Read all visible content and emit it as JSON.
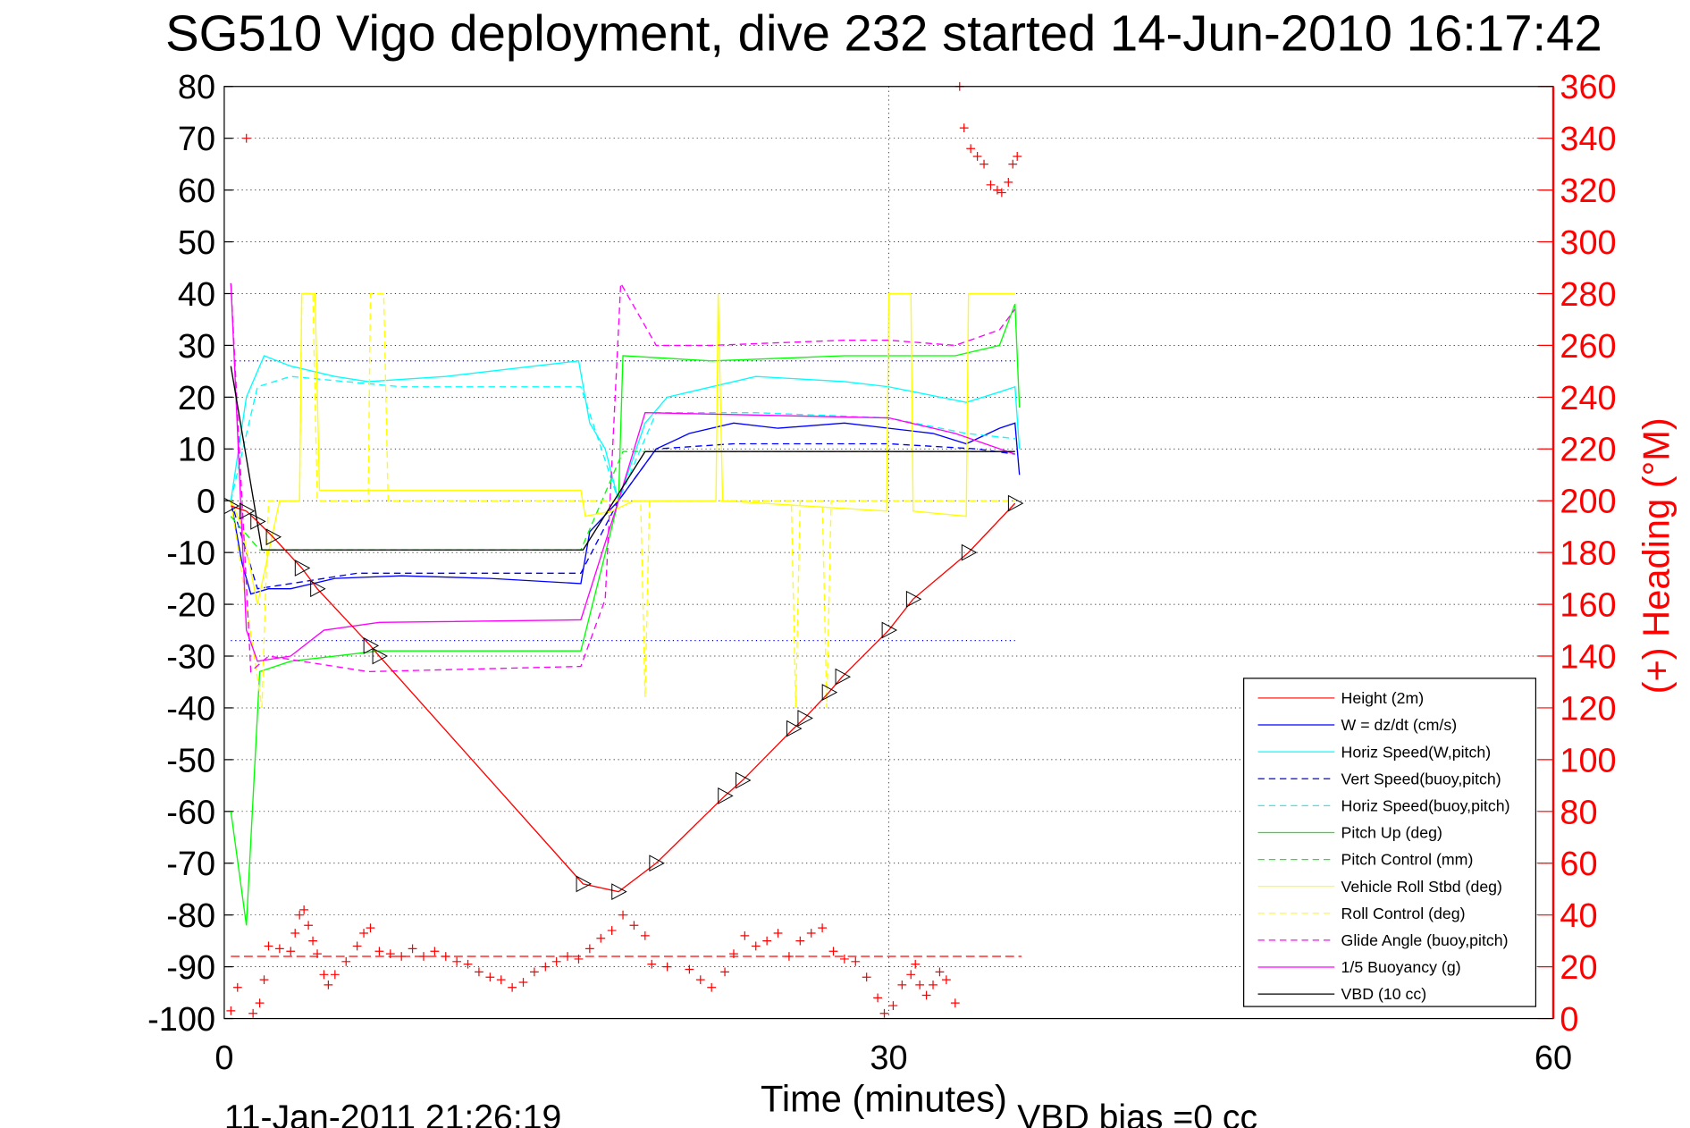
{
  "chart_data": {
    "type": "line",
    "title": "SG510 Vigo deployment, dive 232 started 14-Jun-2010 16:17:42",
    "xlabel": "Time (minutes)",
    "ylabel_right": "(+) Heading (°M)",
    "footer_date": "11-Jan-2011 21:26:19",
    "footer_note": "VBD bias =0 cc",
    "xlim": [
      0,
      60
    ],
    "ylim_left": [
      -100,
      80
    ],
    "ylim_right": [
      0,
      360
    ],
    "x_ticks": [
      "0",
      "30",
      "60"
    ],
    "y_ticks_left": [
      "80",
      "70",
      "60",
      "50",
      "40",
      "30",
      "20",
      "10",
      "0",
      "-10",
      "-20",
      "-30",
      "-40",
      "-50",
      "-60",
      "-70",
      "-80",
      "-90",
      "-100"
    ],
    "y_ticks_right": [
      "360",
      "340",
      "320",
      "300",
      "280",
      "260",
      "240",
      "220",
      "200",
      "180",
      "160",
      "140",
      "120",
      "100",
      "80",
      "60",
      "40",
      "20",
      "0"
    ],
    "grid": true,
    "legend_position": "bottom-right",
    "series": [
      {
        "name": "Height (2m)",
        "color": "#ff0000",
        "dash": false,
        "markers": "triangle",
        "x": [
          0.3,
          1,
          1.5,
          2.2,
          3.5,
          4.2,
          6.6,
          7,
          16.2,
          17.8,
          19.5,
          22.6,
          23.4,
          25.7,
          26.2,
          27.3,
          27.9,
          30,
          31.1,
          33.6,
          35.7
        ],
        "y": [
          -1,
          -2,
          -4,
          -7,
          -13,
          -17,
          -28,
          -30,
          -74,
          -75.5,
          -70,
          -57,
          -54,
          -44,
          -42,
          -37,
          -34,
          -25,
          -19,
          -10,
          -0.5
        ]
      },
      {
        "name": "W = dz/dt (cm/s)",
        "color": "#0000ff",
        "dash": false,
        "x": [
          0.3,
          0.8,
          1.2,
          2,
          3,
          5,
          8,
          12,
          16.1,
          16.5,
          17.8,
          19.5,
          21,
          23,
          25,
          28,
          30,
          32,
          33.5,
          35,
          35.7,
          35.9
        ],
        "y": [
          0,
          -12,
          -18,
          -17,
          -17,
          -15,
          -14.5,
          -15,
          -16,
          -6,
          0,
          10,
          13,
          15,
          14,
          15,
          14,
          13,
          11,
          14,
          15,
          5
        ]
      },
      {
        "name": "Horiz Speed(W,pitch)",
        "color": "#00ffff",
        "dash": false,
        "x": [
          0.3,
          1,
          1.8,
          3,
          5,
          6.5,
          10,
          14,
          16,
          16.5,
          17.2,
          17.8,
          19,
          20,
          24,
          28,
          30,
          33.5,
          35,
          35.7,
          35.9
        ],
        "y": [
          0,
          20,
          28,
          26,
          24,
          23,
          24,
          26,
          27,
          15,
          10,
          0,
          15,
          20,
          24,
          23,
          22,
          19,
          21,
          22,
          10
        ]
      },
      {
        "name": "Vert Speed(buoy,pitch)",
        "color": "#0000ff",
        "dash": true,
        "x": [
          0.3,
          1.5,
          3,
          6,
          16.1,
          17.8,
          19.5,
          23,
          30,
          34,
          35.7
        ],
        "y": [
          0,
          -17,
          -16,
          -14,
          -14,
          0,
          10,
          11,
          11,
          10,
          9
        ]
      },
      {
        "name": "Horiz Speed(buoy,pitch)",
        "color": "#00ffff",
        "dash": true,
        "x": [
          0.3,
          1.5,
          3,
          8,
          16.1,
          17.8,
          19.5,
          24,
          30,
          33.5,
          35.7
        ],
        "y": [
          0,
          22,
          24,
          22,
          22,
          0,
          17,
          17,
          16,
          13,
          12
        ]
      },
      {
        "name": "Pitch Up (deg)",
        "color": "#00ff00",
        "dash": false,
        "x": [
          0.3,
          1,
          1.6,
          3,
          7,
          16.1,
          17.8,
          18,
          22,
          28,
          33,
          35,
          35.7,
          35.9
        ],
        "y": [
          -60,
          -82,
          -33,
          -31,
          -29,
          -29,
          0,
          28,
          27,
          28,
          28,
          30,
          38,
          18
        ]
      },
      {
        "name": "Pitch Control (mm)",
        "color": "#00ff00",
        "dash": true,
        "x": [
          0.3,
          1.6,
          16.1,
          18,
          35.7
        ],
        "y": [
          -3,
          -9.5,
          -9.5,
          9.5,
          9.5
        ]
      },
      {
        "name": "Vehicle Roll Stbd (deg)",
        "color": "#ffff00",
        "dash": false,
        "x": [
          0.3,
          0.8,
          1.5,
          2.5,
          3.4,
          3.5,
          4.1,
          4.3,
          7,
          7.1,
          16.1,
          16.3,
          17.5,
          18.5,
          22.2,
          22.3,
          22.5,
          29.9,
          30,
          31,
          31.1,
          33.5,
          33.6,
          35.7
        ],
        "y": [
          0,
          -5,
          -20,
          0,
          0,
          40,
          40,
          2,
          2,
          2,
          2,
          -3,
          -2,
          0,
          0,
          40,
          0,
          -2,
          40,
          40,
          -2,
          -3,
          40,
          40
        ]
      },
      {
        "name": "Roll Control (deg)",
        "color": "#ffff00",
        "dash": true,
        "x": [
          0.3,
          1.7,
          2,
          3.4,
          3.5,
          4,
          4.2,
          6.5,
          6.6,
          7.2,
          7.4,
          16.1,
          18.8,
          19,
          19.2,
          25.6,
          25.8,
          26,
          27,
          27.2,
          27.4,
          35.7
        ],
        "y": [
          0,
          -40,
          0,
          0,
          40,
          40,
          0,
          0,
          40,
          40,
          0,
          0,
          0,
          -38,
          0,
          0,
          -40,
          0,
          0,
          -40,
          0,
          0
        ]
      },
      {
        "name": "Glide Angle (buoy,pitch)",
        "color": "#ff00ff",
        "dash": true,
        "x": [
          0.3,
          1.2,
          2,
          6.5,
          16.1,
          17.2,
          17.9,
          19.5,
          22,
          28,
          30,
          33,
          35,
          35.7
        ],
        "y": [
          42,
          -33,
          -30,
          -33,
          -32,
          -19,
          42,
          30,
          30,
          31,
          31,
          30,
          33,
          37
        ]
      },
      {
        "name": "1/5 Buoyancy (g)",
        "color": "#ff00ff",
        "dash": false,
        "x": [
          0.3,
          1,
          1.5,
          3,
          4.5,
          7,
          16.1,
          17.8,
          19,
          30,
          33,
          35.7
        ],
        "y": [
          42,
          -25,
          -31,
          -30,
          -25,
          -23.5,
          -23,
          0,
          17,
          16,
          13,
          9
        ]
      },
      {
        "name": "VBD (10 cc)",
        "color": "#000000",
        "dash": false,
        "x": [
          0.3,
          1.7,
          16.2,
          19,
          35.7
        ],
        "y": [
          26,
          -9.5,
          -9.5,
          9.5,
          9.5
        ]
      }
    ],
    "reference_lines_left": [
      27,
      -27
    ],
    "heading_reference": 24,
    "heading_points": [
      [
        0.3,
        3
      ],
      [
        0.6,
        12
      ],
      [
        1,
        340
      ],
      [
        1.3,
        2
      ],
      [
        1.6,
        6
      ],
      [
        1.8,
        15
      ],
      [
        2,
        28
      ],
      [
        2.5,
        27
      ],
      [
        3,
        26
      ],
      [
        3.2,
        33
      ],
      [
        3.4,
        40
      ],
      [
        3.6,
        42
      ],
      [
        3.8,
        36
      ],
      [
        4,
        30
      ],
      [
        4.2,
        25
      ],
      [
        4.5,
        17
      ],
      [
        4.7,
        13
      ],
      [
        5,
        17
      ],
      [
        5.5,
        22
      ],
      [
        6,
        28
      ],
      [
        6.3,
        33
      ],
      [
        6.6,
        35
      ],
      [
        7,
        26
      ],
      [
        7.5,
        25
      ],
      [
        8,
        24
      ],
      [
        8.5,
        27
      ],
      [
        9,
        24
      ],
      [
        9.5,
        26
      ],
      [
        10,
        24
      ],
      [
        10.5,
        22
      ],
      [
        11,
        21
      ],
      [
        11.5,
        18
      ],
      [
        12,
        16
      ],
      [
        12.5,
        15
      ],
      [
        13,
        12
      ],
      [
        13.5,
        14
      ],
      [
        14,
        18
      ],
      [
        14.5,
        20
      ],
      [
        15,
        22
      ],
      [
        15.5,
        24
      ],
      [
        16,
        23
      ],
      [
        16.5,
        27
      ],
      [
        17,
        31
      ],
      [
        17.5,
        34
      ],
      [
        18,
        40
      ],
      [
        18.5,
        36
      ],
      [
        19,
        32
      ],
      [
        19.3,
        21
      ],
      [
        20,
        20
      ],
      [
        21,
        19
      ],
      [
        21.5,
        15
      ],
      [
        22,
        12
      ],
      [
        22.6,
        18
      ],
      [
        23,
        25
      ],
      [
        23.5,
        32
      ],
      [
        24,
        28
      ],
      [
        24.5,
        30
      ],
      [
        25,
        33
      ],
      [
        25.5,
        24
      ],
      [
        26,
        30
      ],
      [
        26.5,
        33
      ],
      [
        27,
        35
      ],
      [
        27.5,
        26
      ],
      [
        28,
        23
      ],
      [
        28.5,
        22
      ],
      [
        29,
        16
      ],
      [
        29.5,
        8
      ],
      [
        29.8,
        2
      ],
      [
        30.2,
        5
      ],
      [
        30.6,
        13
      ],
      [
        31,
        17
      ],
      [
        31.2,
        21
      ],
      [
        31.4,
        13
      ],
      [
        31.7,
        9
      ],
      [
        32,
        13
      ],
      [
        32.3,
        18
      ],
      [
        32.6,
        15
      ],
      [
        33,
        6
      ],
      [
        33.2,
        360
      ],
      [
        33.4,
        344
      ],
      [
        33.7,
        336
      ],
      [
        34,
        333
      ],
      [
        34.3,
        330
      ],
      [
        34.6,
        322
      ],
      [
        34.9,
        320
      ],
      [
        35.1,
        319
      ],
      [
        35.4,
        323
      ],
      [
        35.6,
        330
      ],
      [
        35.8,
        333
      ]
    ]
  },
  "legend": [
    "Height (2m)",
    "W = dz/dt (cm/s)",
    "Horiz Speed(W,pitch)",
    "Vert Speed(buoy,pitch)",
    "Horiz Speed(buoy,pitch)",
    "Pitch Up (deg)",
    "Pitch Control (mm)",
    "Vehicle Roll Stbd (deg)",
    "Roll Control (deg)",
    "Glide Angle (buoy,pitch)",
    "1/5 Buoyancy (g)",
    "VBD (10 cc)"
  ]
}
